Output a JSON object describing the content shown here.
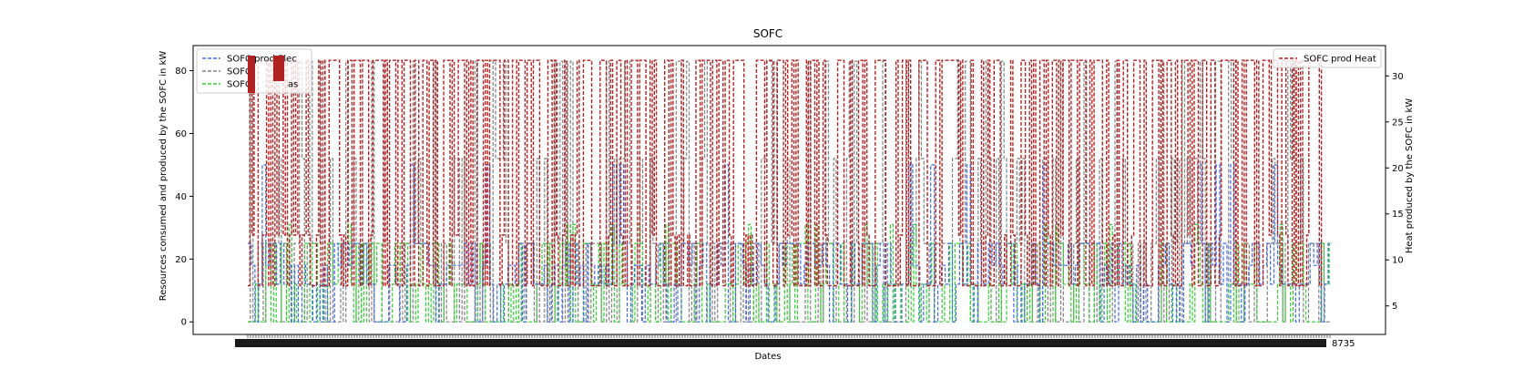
{
  "chart_data": {
    "type": "line",
    "title": "SOFC",
    "xlabel": "Dates",
    "ylabel_left": "Resources consumed and produced by the SOFC in kW",
    "ylabel_right": "Heat produced by the SOFC in kW",
    "y_left_ticks": [
      0,
      20,
      40,
      60,
      80
    ],
    "y_left_lim": [
      -4,
      88
    ],
    "y_right_ticks": [
      5,
      10,
      15,
      20,
      25,
      30
    ],
    "y_right_lim": [
      1.9,
      33.3
    ],
    "grid": false,
    "x_tick_label_last": "8735",
    "colors": {
      "elec": "#4169e1",
      "gas": "#808080",
      "heat": "#b22222",
      "green": "#32cd32"
    },
    "legend_left": {
      "placement": "upper-left",
      "entries": [
        {
          "label": "SOFC prod Elec",
          "color": "#4169e1"
        },
        {
          "label": "SOFC",
          "color": "#808080"
        },
        {
          "label": "SOFC",
          "color": "#32cd32"
        }
      ],
      "partial_text": "as"
    },
    "legend_right": {
      "placement": "upper-right",
      "entries": [
        {
          "label": "SOFC prod Heat",
          "color": "#b22222"
        }
      ]
    },
    "series": [
      {
        "name": "SOFC prod Elec",
        "axis": "left",
        "levels": [
          0,
          12,
          18,
          25,
          50
        ]
      },
      {
        "name": "SOFC",
        "axis": "left",
        "levels": [
          0,
          25,
          52,
          83
        ]
      },
      {
        "name": "SOFC",
        "axis": "left",
        "levels": [
          0,
          12,
          25,
          31
        ]
      },
      {
        "name": "SOFC prod Heat",
        "axis": "right",
        "levels": [
          7.2,
          12.7,
          31.7
        ]
      }
    ]
  }
}
